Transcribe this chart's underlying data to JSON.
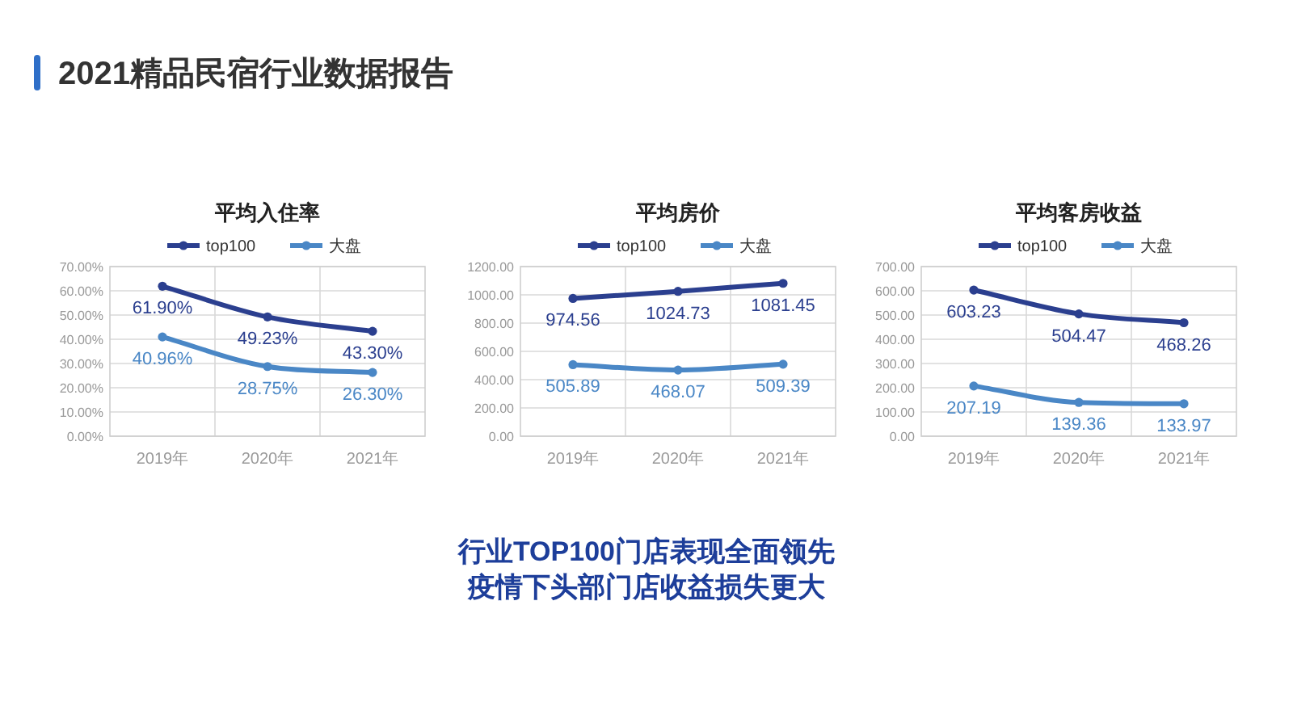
{
  "chart_data": [
    {
      "type": "other",
      "title": "2021精品民宿行业数据报告"
    },
    {
      "type": "line",
      "title": "平均入住率",
      "categories": [
        "2019年",
        "2020年",
        "2021年"
      ],
      "series": [
        {
          "name": "top100",
          "color": "#2b3f8f",
          "values": [
            61.9,
            49.23,
            43.3
          ],
          "value_labels": [
            "61.90%",
            "49.23%",
            "43.30%"
          ]
        },
        {
          "name": "大盘",
          "color": "#4a87c6",
          "values": [
            40.96,
            28.75,
            26.3
          ],
          "value_labels": [
            "40.96%",
            "28.75%",
            "26.30%"
          ]
        }
      ],
      "ylim": [
        0,
        70
      ],
      "yticks": [
        {
          "value": 0,
          "label": "0.00%"
        },
        {
          "value": 10,
          "label": "10.00%"
        },
        {
          "value": 20,
          "label": "20.00%"
        },
        {
          "value": 30,
          "label": "30.00%"
        },
        {
          "value": 40,
          "label": "40.00%"
        },
        {
          "value": 50,
          "label": "50.00%"
        },
        {
          "value": 60,
          "label": "60.00%"
        },
        {
          "value": 70,
          "label": "70.00%"
        }
      ],
      "grid": true,
      "legend": "top",
      "marker": "circle",
      "line_style": "solid"
    },
    {
      "type": "line",
      "title": "平均房价",
      "categories": [
        "2019年",
        "2020年",
        "2021年"
      ],
      "series": [
        {
          "name": "top100",
          "color": "#2b3f8f",
          "values": [
            974.56,
            1024.73,
            1081.45
          ],
          "value_labels": [
            "974.56",
            "1024.73",
            "1081.45"
          ]
        },
        {
          "name": "大盘",
          "color": "#4a87c6",
          "values": [
            505.89,
            468.07,
            509.39
          ],
          "value_labels": [
            "505.89",
            "468.07",
            "509.39"
          ]
        }
      ],
      "ylim": [
        0,
        1200
      ],
      "yticks": [
        {
          "value": 0,
          "label": "0.00"
        },
        {
          "value": 200,
          "label": "200.00"
        },
        {
          "value": 400,
          "label": "400.00"
        },
        {
          "value": 600,
          "label": "600.00"
        },
        {
          "value": 800,
          "label": "800.00"
        },
        {
          "value": 1000,
          "label": "1000.00"
        },
        {
          "value": 1200,
          "label": "1200.00"
        }
      ],
      "grid": true,
      "legend": "top",
      "marker": "circle",
      "line_style": "solid"
    },
    {
      "type": "line",
      "title": "平均客房收益",
      "categories": [
        "2019年",
        "2020年",
        "2021年"
      ],
      "series": [
        {
          "name": "top100",
          "color": "#2b3f8f",
          "values": [
            603.23,
            504.47,
            468.26
          ],
          "value_labels": [
            "603.23",
            "504.47",
            "468.26"
          ]
        },
        {
          "name": "大盘",
          "color": "#4a87c6",
          "values": [
            207.19,
            139.36,
            133.97
          ],
          "value_labels": [
            "207.19",
            "139.36",
            "133.97"
          ]
        }
      ],
      "ylim": [
        0,
        700
      ],
      "yticks": [
        {
          "value": 0,
          "label": "0.00"
        },
        {
          "value": 100,
          "label": "100.00"
        },
        {
          "value": 200,
          "label": "200.00"
        },
        {
          "value": 300,
          "label": "300.00"
        },
        {
          "value": 400,
          "label": "400.00"
        },
        {
          "value": 500,
          "label": "500.00"
        },
        {
          "value": 600,
          "label": "600.00"
        },
        {
          "value": 700,
          "label": "700.00"
        }
      ],
      "grid": true,
      "legend": "top",
      "marker": "circle",
      "line_style": "solid"
    },
    {
      "type": "other",
      "annotations": [
        "行业TOP100门店表现全面领先",
        "疫情下头部门店收益损失更大"
      ]
    }
  ]
}
